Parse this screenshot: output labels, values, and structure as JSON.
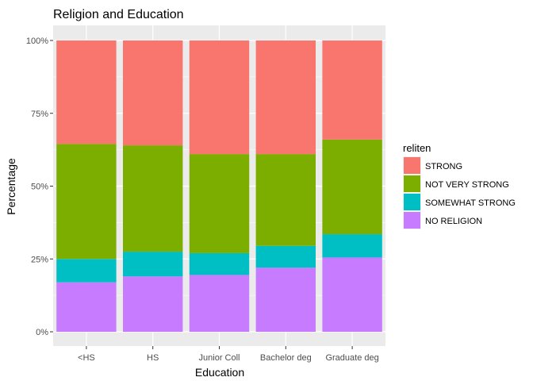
{
  "chart_data": {
    "type": "bar",
    "stacked": true,
    "title": "Religion and Education",
    "xlabel": "Education",
    "ylabel": "Percentage",
    "ylim": [
      0,
      1
    ],
    "y_ticks": [
      0,
      0.25,
      0.5,
      0.75,
      1
    ],
    "y_tick_labels": [
      "0%",
      "25%",
      "50%",
      "75%",
      "100%"
    ],
    "categories": [
      "<HS",
      "HS",
      "Junior Coll",
      "Bachelor deg",
      "Graduate deg"
    ],
    "series": [
      {
        "name": "NO RELIGION",
        "color": "#C77CFF",
        "values": [
          0.17,
          0.19,
          0.195,
          0.22,
          0.255
        ]
      },
      {
        "name": "SOMEWHAT STRONG",
        "color": "#00BFC4",
        "values": [
          0.08,
          0.085,
          0.075,
          0.075,
          0.08
        ]
      },
      {
        "name": "NOT VERY STRONG",
        "color": "#7CAE00",
        "values": [
          0.395,
          0.365,
          0.34,
          0.315,
          0.325
        ]
      },
      {
        "name": "STRONG",
        "color": "#F8766D",
        "values": [
          0.355,
          0.36,
          0.39,
          0.39,
          0.34
        ]
      }
    ],
    "grid": true,
    "panel_background": "#EBEBEB",
    "grid_color": "#FFFFFF",
    "legend": {
      "title": "reliten",
      "position": "right",
      "entries": [
        "STRONG",
        "NOT VERY STRONG",
        "SOMEWHAT STRONG",
        "NO RELIGION"
      ]
    }
  }
}
